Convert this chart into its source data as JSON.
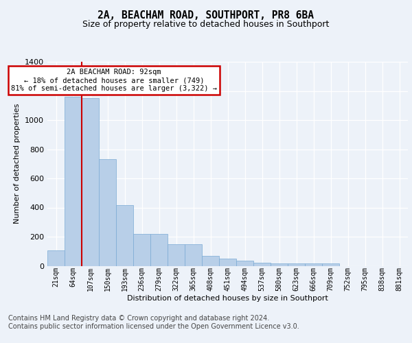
{
  "title": "2A, BEACHAM ROAD, SOUTHPORT, PR8 6BA",
  "subtitle": "Size of property relative to detached houses in Southport",
  "xlabel": "Distribution of detached houses by size in Southport",
  "ylabel": "Number of detached properties",
  "categories": [
    "21sqm",
    "64sqm",
    "107sqm",
    "150sqm",
    "193sqm",
    "236sqm",
    "279sqm",
    "322sqm",
    "365sqm",
    "408sqm",
    "451sqm",
    "494sqm",
    "537sqm",
    "580sqm",
    "623sqm",
    "666sqm",
    "709sqm",
    "752sqm",
    "795sqm",
    "838sqm",
    "881sqm"
  ],
  "values": [
    107,
    1158,
    1150,
    730,
    418,
    218,
    218,
    148,
    148,
    68,
    50,
    33,
    23,
    18,
    18,
    15,
    15,
    0,
    0,
    0,
    0
  ],
  "bar_color": "#b8cfe8",
  "bar_edge_color": "#7aaad4",
  "red_line_x": 1.5,
  "red_line_color": "#cc0000",
  "annotation_text": "2A BEACHAM ROAD: 92sqm\n← 18% of detached houses are smaller (749)\n81% of semi-detached houses are larger (3,322) →",
  "annotation_box_facecolor": "#ffffff",
  "annotation_box_edgecolor": "#cc0000",
  "bg_color": "#edf2f9",
  "grid_color": "#ffffff",
  "ylim": [
    0,
    1400
  ],
  "yticks": [
    0,
    200,
    400,
    600,
    800,
    1000,
    1200,
    1400
  ],
  "footer_line1": "Contains HM Land Registry data © Crown copyright and database right 2024.",
  "footer_line2": "Contains public sector information licensed under the Open Government Licence v3.0."
}
